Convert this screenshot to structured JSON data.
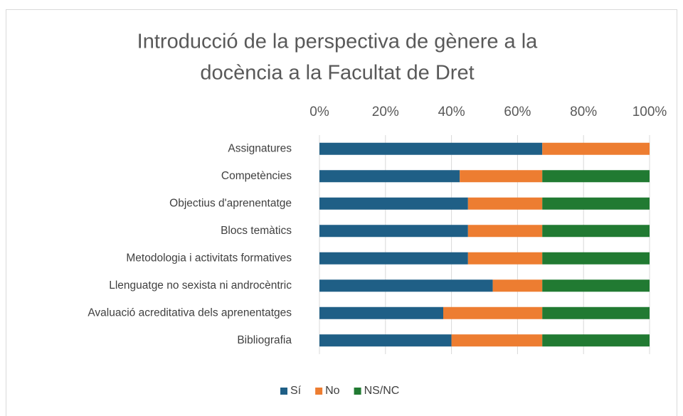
{
  "chart_data": {
    "type": "stacked_barh",
    "title": [
      "Introducció de la perspectiva de gènere a la",
      "docència a la Facultat de Dret"
    ],
    "categories": [
      "Assignatures",
      "Competències",
      "Objectius d'aprenentatge",
      "Blocs temàtics",
      "Metodologia i activitats formatives",
      "Llenguatge no sexista ni androcèntric",
      "Avaluació acreditativa dels aprenentatges",
      "Bibliografia"
    ],
    "series": [
      {
        "name": "Sí",
        "color": "#1f5f86",
        "values": [
          67.5,
          42.5,
          45,
          45,
          45,
          52.5,
          37.5,
          40
        ]
      },
      {
        "name": "No",
        "color": "#ed7d31",
        "values": [
          32.5,
          25,
          22.5,
          22.5,
          22.5,
          15,
          30,
          27.5
        ]
      },
      {
        "name": "NS/NC",
        "color": "#217a32",
        "values": [
          0,
          32.5,
          32.5,
          32.5,
          32.5,
          32.5,
          32.5,
          32.5
        ]
      }
    ],
    "xlim": [
      0,
      100
    ],
    "xticks": [
      {
        "value": 0,
        "label": "0%"
      },
      {
        "value": 20,
        "label": "20%"
      },
      {
        "value": 40,
        "label": "40%"
      },
      {
        "value": 60,
        "label": "60%"
      },
      {
        "value": 80,
        "label": "80%"
      },
      {
        "value": 100,
        "label": "100%"
      }
    ],
    "grid": true,
    "legend": "bottom"
  }
}
